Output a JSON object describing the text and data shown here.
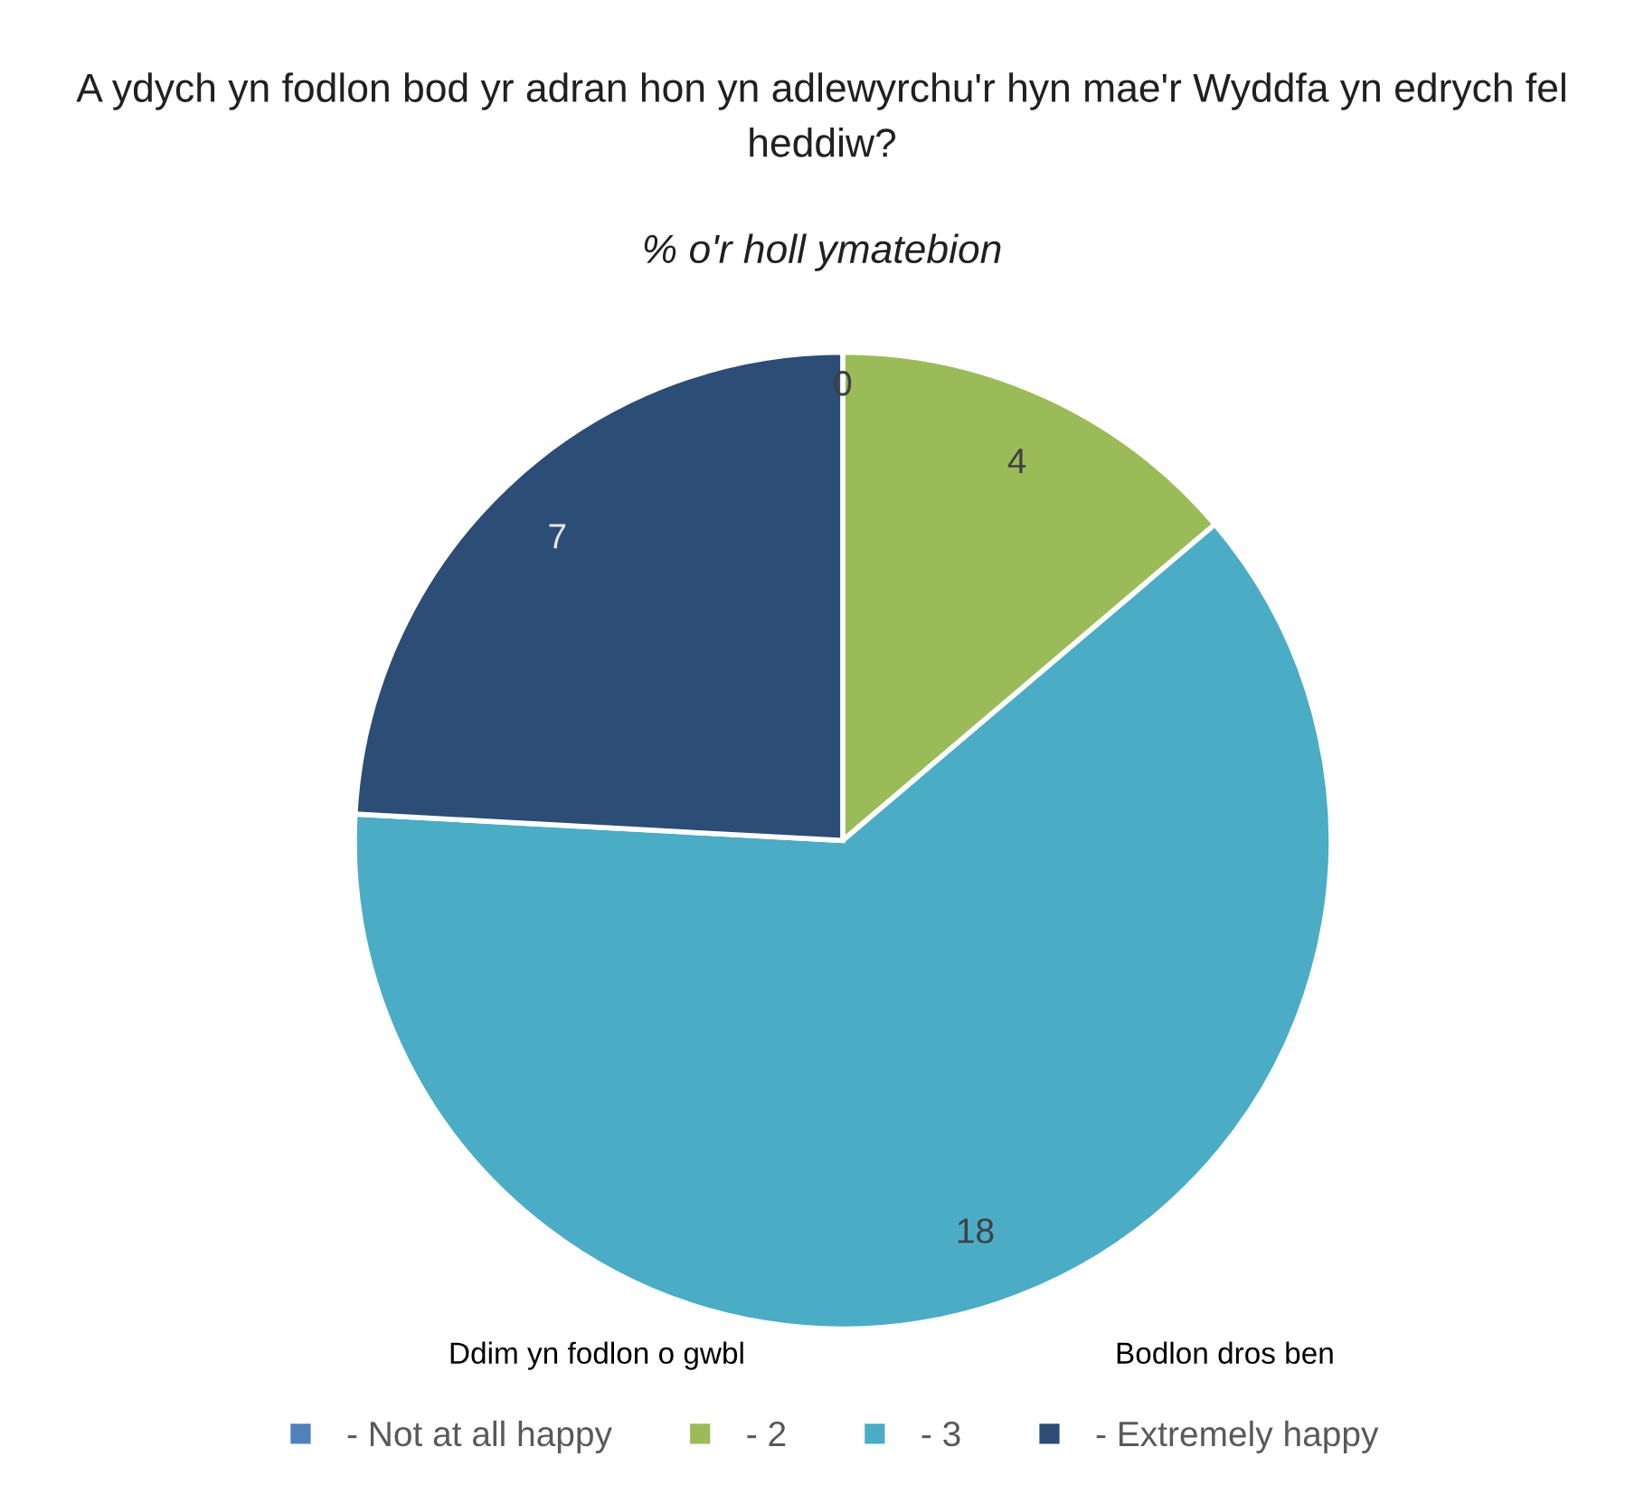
{
  "chart_data": {
    "type": "pie",
    "title": "A ydych yn fodlon bod yr adran hon yn adlewyrchu'r hyn mae'r Wyddfa yn edrych fel heddiw?",
    "subtitle": "% o'r holl ymatebion",
    "categories": [
      "- Not at all happy",
      "- 2",
      "- 3",
      "- Extremely happy"
    ],
    "values": [
      0,
      4,
      18,
      7
    ],
    "value_labels": [
      "0",
      "4",
      "18",
      "7"
    ],
    "colors": [
      "#4f81bd",
      "#9bbb59",
      "#4bacc6",
      "#2c4d75"
    ],
    "legend": "bottom",
    "annotations": [
      "Ddim yn fodlon o gwbl",
      "Bodlon dros ben"
    ]
  }
}
